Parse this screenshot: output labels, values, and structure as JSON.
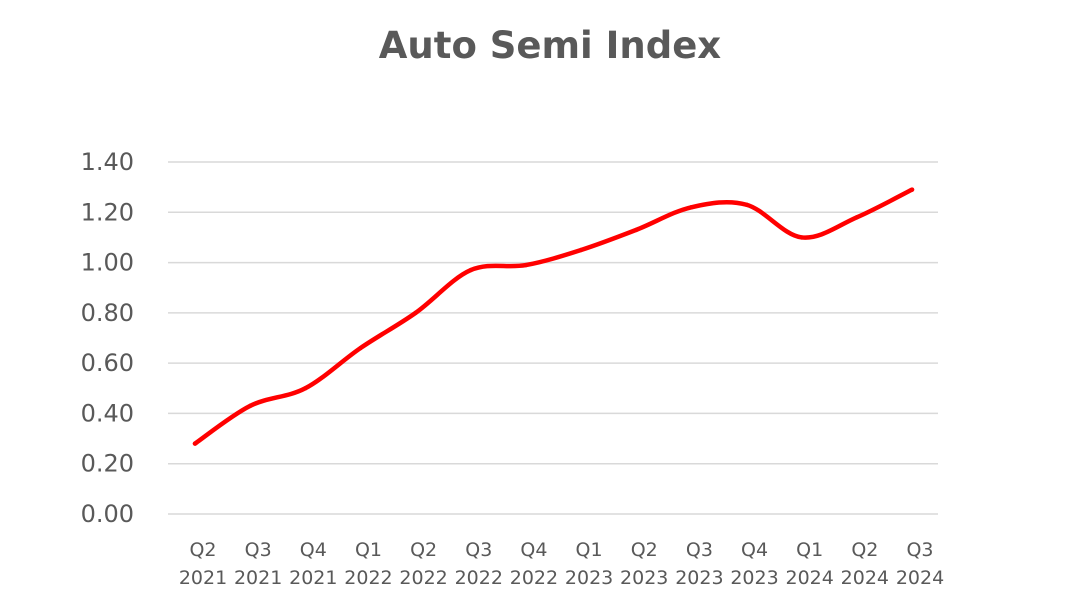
{
  "chart_data": {
    "type": "line",
    "title": "Auto Semi Index",
    "xlabel": "",
    "ylabel": "",
    "categories": [
      [
        "Q2",
        "2021"
      ],
      [
        "Q3",
        "2021"
      ],
      [
        "Q4",
        "2021"
      ],
      [
        "Q1",
        "2022"
      ],
      [
        "Q2",
        "2022"
      ],
      [
        "Q3",
        "2022"
      ],
      [
        "Q4",
        "2022"
      ],
      [
        "Q1",
        "2023"
      ],
      [
        "Q2",
        "2023"
      ],
      [
        "Q3",
        "2023"
      ],
      [
        "Q4",
        "2023"
      ],
      [
        "Q1",
        "2024"
      ],
      [
        "Q2",
        "2024"
      ],
      [
        "Q3",
        "2024"
      ]
    ],
    "series": [
      {
        "color": "#ff0000",
        "smooth": true,
        "values": [
          0.28,
          0.43,
          0.5,
          0.66,
          0.8,
          0.97,
          0.99,
          1.05,
          1.13,
          1.22,
          1.23,
          1.1,
          1.18,
          1.29
        ]
      }
    ],
    "ylim": [
      0,
      1.4
    ],
    "yticks": [
      "0.00",
      "0.20",
      "0.40",
      "0.60",
      "0.80",
      "1.00",
      "1.20",
      "1.40"
    ],
    "grid": true,
    "legend": "none",
    "colors": {
      "text": "#595959",
      "grid": "#d9d9d9"
    }
  }
}
